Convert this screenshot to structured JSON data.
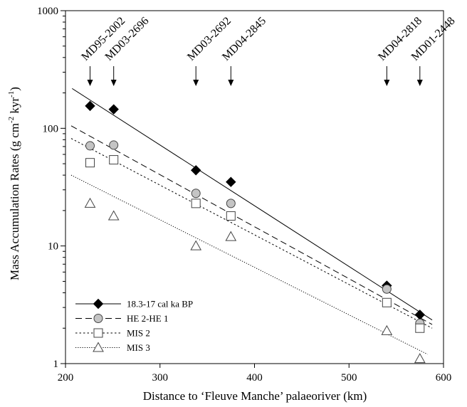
{
  "chart_data": {
    "type": "scatter",
    "title": "",
    "xlabel": "Distance to ‘Fleuve Manche’ palaeoriver (km)",
    "ylabel_parts": [
      "Mass Accumulation Rates (g cm",
      "-2",
      " kyr",
      "-1",
      ")"
    ],
    "xlim": [
      200,
      600
    ],
    "ylim": [
      1,
      1000
    ],
    "y_scale": "log",
    "grid": false,
    "legend_position": "bottom-left",
    "xticks": [
      200,
      300,
      400,
      500,
      600
    ],
    "yticks": [
      1,
      10,
      100,
      1000
    ],
    "cores": [
      {
        "name": "MD95-2002",
        "x": 226
      },
      {
        "name": "MD03-2696",
        "x": 251
      },
      {
        "name": "MD03-2692",
        "x": 338
      },
      {
        "name": "MD04-2845",
        "x": 375
      },
      {
        "name": "MD04-2818",
        "x": 540
      },
      {
        "name": "MD01-2448",
        "x": 575
      }
    ],
    "series": [
      {
        "name": "18.3-17 cal ka BP",
        "marker": "diamond",
        "line": "solid",
        "x": [
          226,
          251,
          338,
          375,
          540,
          575
        ],
        "y": [
          155,
          145,
          44,
          35,
          4.6,
          2.6
        ],
        "fit": {
          "x": [
            207,
            588
          ],
          "y": [
            218,
            2.35
          ]
        }
      },
      {
        "name": "HE 2-HE 1",
        "marker": "circle",
        "line": "dashed",
        "x": [
          226,
          251,
          338,
          375,
          540,
          575
        ],
        "y": [
          71,
          72,
          28,
          23,
          4.3,
          2.2
        ],
        "fit": {
          "x": [
            206,
            588
          ],
          "y": [
            105,
            2.15
          ]
        }
      },
      {
        "name": "MIS 2",
        "marker": "square",
        "line": "dotted",
        "x": [
          226,
          251,
          338,
          375,
          540,
          575
        ],
        "y": [
          51,
          54,
          23,
          18,
          3.3,
          2.0
        ],
        "fit": {
          "x": [
            206,
            588
          ],
          "y": [
            82,
            2.0
          ]
        }
      },
      {
        "name": "MIS 3",
        "marker": "triangle",
        "line": "finedotted",
        "x": [
          226,
          251,
          338,
          375,
          540,
          575
        ],
        "y": [
          23,
          18,
          10,
          12,
          1.9,
          1.1
        ],
        "fit": {
          "x": [
            206,
            583
          ],
          "y": [
            40,
            1.2
          ]
        }
      }
    ]
  }
}
